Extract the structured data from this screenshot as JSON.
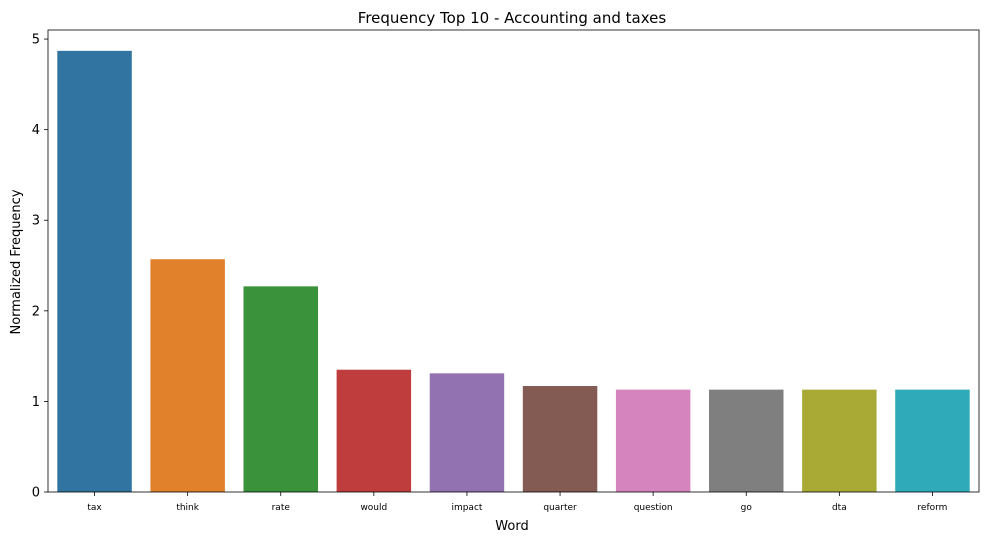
{
  "chart_data": {
    "type": "bar",
    "title": "Frequency Top 10 - Accounting and taxes",
    "xlabel": "Word",
    "ylabel": "Normalized Frequency",
    "categories": [
      "tax",
      "think",
      "rate",
      "would",
      "impact",
      "quarter",
      "question",
      "go",
      "dta",
      "reform"
    ],
    "values": [
      4.87,
      2.57,
      2.27,
      1.35,
      1.31,
      1.17,
      1.13,
      1.13,
      1.13,
      1.13
    ],
    "colors": [
      "#3274a1",
      "#e1812c",
      "#3a923a",
      "#c03d3e",
      "#9372b2",
      "#845b53",
      "#d684bd",
      "#7f7f7f",
      "#a9aa35",
      "#2eaab8"
    ],
    "ylim": [
      0,
      5.1
    ],
    "yticks": [
      "0",
      "1",
      "2",
      "3",
      "4",
      "5"
    ],
    "grid": false,
    "legend": "none"
  }
}
